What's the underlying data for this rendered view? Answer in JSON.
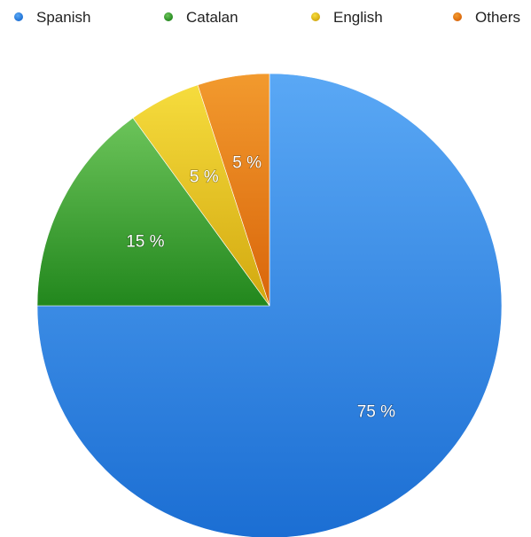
{
  "chart_data": {
    "type": "pie",
    "categories": [
      "Spanish",
      "Catalan",
      "English",
      "Others"
    ],
    "values": [
      75,
      15,
      5,
      5
    ],
    "data_labels": [
      "75 %",
      "15 %",
      "5 %",
      "5 %"
    ],
    "colors": [
      "#2b86e6",
      "#36a52f",
      "#e9c31f",
      "#ec7b14"
    ],
    "colors_light": [
      "#5aa8f5",
      "#6cc45a",
      "#f6dc3d",
      "#f29a2e"
    ],
    "colors_dark": [
      "#1b6ed3",
      "#22871d",
      "#d2a80f",
      "#d9650a"
    ],
    "legend_position": "top",
    "start_angle_deg": 0,
    "direction": "clockwise"
  }
}
